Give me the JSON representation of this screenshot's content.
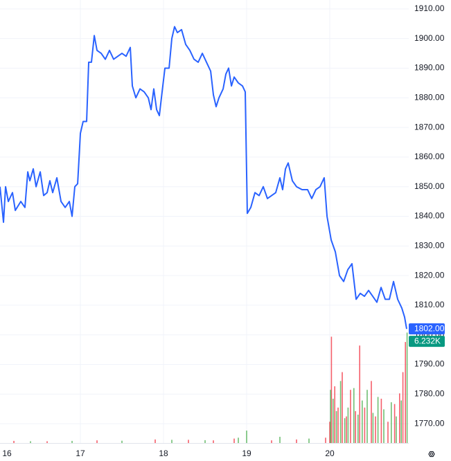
{
  "chart_data": {
    "type": "line",
    "xlim": [
      16.033,
      20.95
    ],
    "xticks": [
      16,
      17,
      18,
      19,
      20
    ],
    "ylim": [
      1763.5,
      1913
    ],
    "yticks": [
      {
        "value": 1770,
        "label": "1770.00"
      },
      {
        "value": 1780,
        "label": "1780.00"
      },
      {
        "value": 1790,
        "label": "1790.00"
      },
      {
        "value": 1800,
        "label": "1800.00"
      },
      {
        "value": 1810,
        "label": "1810.00"
      },
      {
        "value": 1820,
        "label": "1820.00"
      },
      {
        "value": 1830,
        "label": "1830.00"
      },
      {
        "value": 1840,
        "label": "1840.00"
      },
      {
        "value": 1850,
        "label": "1850.00"
      },
      {
        "value": 1860,
        "label": "1860.00"
      },
      {
        "value": 1870,
        "label": "1870.00"
      },
      {
        "value": 1880,
        "label": "1880.00"
      },
      {
        "value": 1890,
        "label": "1890.00"
      },
      {
        "value": 1900,
        "label": "1900.00"
      },
      {
        "value": 1910,
        "label": "1910.00"
      }
    ],
    "grid": true,
    "series": [
      {
        "color": "#2962ff",
        "x": [
          16.033,
          16.075,
          16.1,
          16.133,
          16.183,
          16.217,
          16.283,
          16.333,
          16.367,
          16.392,
          16.433,
          16.467,
          16.517,
          16.558,
          16.6,
          16.633,
          16.667,
          16.717,
          16.767,
          16.817,
          16.867,
          16.9,
          16.933,
          16.967,
          17.0,
          17.033,
          17.075,
          17.1,
          17.133,
          17.167,
          17.2,
          17.25,
          17.3,
          17.35,
          17.4,
          17.45,
          17.5,
          17.55,
          17.6,
          17.625,
          17.667,
          17.717,
          17.767,
          17.817,
          17.85,
          17.883,
          17.917,
          17.95,
          17.983,
          18.017,
          18.067,
          18.1,
          18.133,
          18.167,
          18.217,
          18.267,
          18.317,
          18.367,
          18.417,
          18.467,
          18.517,
          18.567,
          18.6,
          18.633,
          18.667,
          18.717,
          18.75,
          18.783,
          18.817,
          18.85,
          18.9,
          18.95,
          18.983,
          19.008,
          19.05,
          19.1,
          19.15,
          19.2,
          19.25,
          19.3,
          19.35,
          19.4,
          19.433,
          19.467,
          19.5,
          19.55,
          19.6,
          19.667,
          19.733,
          19.783,
          19.833,
          19.883,
          19.933,
          19.967,
          20.017,
          20.067,
          20.117,
          20.167,
          20.217,
          20.267,
          20.317,
          20.367,
          20.417,
          20.467,
          20.517,
          20.567,
          20.617,
          20.667,
          20.717,
          20.767,
          20.817,
          20.867,
          20.9,
          20.925
        ],
        "values": [
          1850,
          1838,
          1850,
          1845,
          1848,
          1842,
          1845,
          1843,
          1855,
          1852,
          1856,
          1850,
          1855,
          1847,
          1848,
          1852,
          1848,
          1853,
          1845,
          1843,
          1845,
          1840,
          1850,
          1851,
          1868,
          1872,
          1872,
          1892,
          1892,
          1901,
          1896,
          1895,
          1893,
          1896,
          1893,
          1894,
          1895,
          1894,
          1897,
          1884,
          1880,
          1883,
          1882,
          1880,
          1876,
          1883,
          1876,
          1874,
          1882,
          1890,
          1890,
          1900,
          1904,
          1902,
          1903,
          1898,
          1896,
          1893,
          1892,
          1895,
          1892,
          1889,
          1881,
          1877,
          1880,
          1883,
          1888,
          1890,
          1884,
          1887,
          1885,
          1884,
          1882,
          1841,
          1843,
          1848,
          1847,
          1850,
          1846,
          1847,
          1848,
          1853,
          1849,
          1856,
          1858,
          1852,
          1850,
          1849,
          1849,
          1846,
          1849,
          1850,
          1853,
          1840,
          1832,
          1828,
          1820,
          1818,
          1822,
          1824,
          1812,
          1814,
          1813,
          1815,
          1813,
          1811,
          1816,
          1812,
          1812,
          1818,
          1812,
          1809,
          1806,
          1802
        ],
        "last_value_label": {
          "value": 1802,
          "label": "1802.00"
        }
      }
    ],
    "volume": {
      "ylim": [
        0,
        25000
      ],
      "up": {
        "color": "#4caf50",
        "x": [
          16.4,
          16.9,
          17.5,
          18.1,
          18.5,
          18.9,
          19.0,
          19.4,
          19.75,
          20.01,
          20.04,
          20.08,
          20.13,
          20.18,
          20.22,
          20.29,
          20.34,
          20.39,
          20.45,
          20.52,
          20.58,
          20.65,
          20.74,
          20.8,
          20.86,
          20.93
        ],
        "values": [
          100,
          120,
          130,
          180,
          160,
          300,
          700,
          350,
          250,
          3000,
          2500,
          1800,
          3500,
          1400,
          2000,
          3100,
          1600,
          2400,
          3000,
          1700,
          2600,
          1900,
          2300,
          1500,
          2400,
          6232
        ],
        "last_value_label": {
          "value": 6232,
          "label": "6.232K"
        }
      },
      "down": {
        "color": "#f23645",
        "x": [
          16.2,
          16.6,
          17.2,
          17.9,
          18.3,
          18.6,
          18.85,
          19.3,
          19.6,
          19.95,
          20.0,
          20.02,
          20.06,
          20.1,
          20.15,
          20.2,
          20.25,
          20.31,
          20.36,
          20.42,
          20.5,
          20.55,
          20.62,
          20.7,
          20.78,
          20.84,
          20.88,
          20.91
        ],
        "values": [
          120,
          100,
          150,
          200,
          180,
          150,
          250,
          150,
          200,
          300,
          1200,
          6000,
          3200,
          2000,
          4000,
          1500,
          3000,
          1800,
          5500,
          2000,
          3500,
          1500,
          2500,
          1200,
          2200,
          2800,
          4000,
          5700
        ]
      }
    }
  }
}
